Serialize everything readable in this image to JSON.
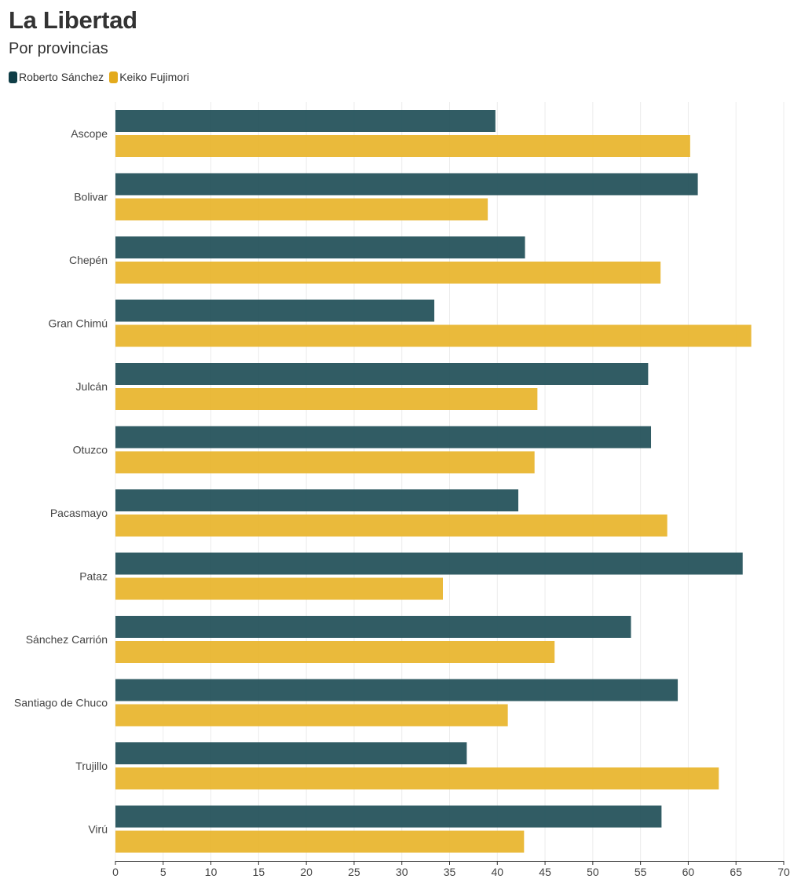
{
  "chart_data": {
    "type": "bar",
    "orientation": "horizontal",
    "title": "La Libertad",
    "subtitle": "Por provincias",
    "categories": [
      "Ascope",
      "Bolivar",
      "Chepén",
      "Gran Chimú",
      "Julcán",
      "Otuzco",
      "Pacasmayo",
      "Pataz",
      "Sánchez Carrión",
      "Santiago de Chuco",
      "Trujillo",
      "Virú"
    ],
    "series": [
      {
        "name": "Roberto Sánchez",
        "color": "#1f4e57",
        "values": [
          39.8,
          61.0,
          42.9,
          33.4,
          55.8,
          56.1,
          42.2,
          65.7,
          54.0,
          58.9,
          36.8,
          57.2
        ]
      },
      {
        "name": "Keiko Fujimori",
        "color": "#e8b52c",
        "values": [
          60.2,
          39.0,
          57.1,
          66.6,
          44.2,
          43.9,
          57.8,
          34.3,
          46.0,
          41.1,
          63.2,
          42.8
        ]
      }
    ],
    "xlim": [
      0,
      70
    ],
    "xticks": [
      0,
      5,
      10,
      15,
      20,
      25,
      30,
      35,
      40,
      45,
      50,
      55,
      60,
      65,
      70
    ],
    "grid": true,
    "legend_position": "top-left"
  }
}
